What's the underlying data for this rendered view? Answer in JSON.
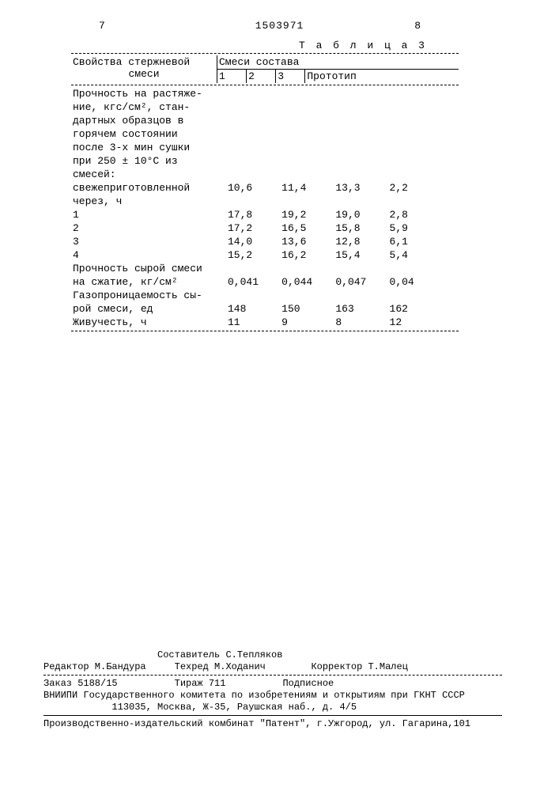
{
  "page_left": "7",
  "doc_number": "1503971",
  "page_right": "8",
  "table_title": "Т а б л и ц а 3",
  "header": {
    "property_col_label1": "Свойства стержневой",
    "property_col_label2": "смеси",
    "group": "Смеси состава",
    "cols": [
      "1",
      "2",
      "3",
      "Прототип"
    ]
  },
  "rows": [
    {
      "label": "Прочность на растяже-"
    },
    {
      "label": "ние, кгс/см², стан-"
    },
    {
      "label": "дартных образцов в"
    },
    {
      "label": "горячем состоянии"
    },
    {
      "label": "после 3-х мин сушки"
    },
    {
      "label": "при 250 ± 10°С из"
    },
    {
      "label": "смесей:"
    },
    {
      "label": "свежеприготовленной",
      "indent": 1,
      "v": [
        "10,6",
        "11,4",
        "13,3",
        "2,2"
      ]
    },
    {
      "label": "через, ч",
      "indent": 1
    },
    {
      "label": "1",
      "indent": 2,
      "v": [
        "17,8",
        "19,2",
        "19,0",
        "2,8"
      ]
    },
    {
      "label": "2",
      "indent": 2,
      "v": [
        "17,2",
        "16,5",
        "15,8",
        "5,9"
      ]
    },
    {
      "label": "3",
      "indent": 2,
      "v": [
        "14,0",
        "13,6",
        "12,8",
        "6,1"
      ]
    },
    {
      "label": "4",
      "indent": 2,
      "v": [
        "15,2",
        "16,2",
        "15,4",
        "5,4"
      ]
    },
    {
      "label": "Прочность сырой смеси"
    },
    {
      "label": "на сжатие, кг/см²",
      "v": [
        "0,041",
        "0,044",
        "0,047",
        "0,04"
      ]
    },
    {
      "label": "Газопроницаемость сы-"
    },
    {
      "label": "рой смеси, ед",
      "v": [
        "148",
        "150",
        "163",
        "162"
      ]
    },
    {
      "label": "Живучесть, ч",
      "v": [
        "11",
        "9",
        "8",
        "12"
      ]
    }
  ],
  "footer": {
    "l1": "                    Составитель С.Тепляков",
    "l2": "Редактор М.Бандура     Техред М.Ходанич        Корректор Т.Малец",
    "l3": "Заказ 5188/15          Тираж 711          Подписное",
    "l4": "ВНИИПИ Государственного комитета по изобретениям и открытиям при ГКНТ СССР",
    "l5": "            113035, Москва, Ж-35, Раушская наб., д. 4/5",
    "l6": "Производственно-издательский комбинат \"Патент\", г.Ужгород, ул. Гагарина,101"
  }
}
